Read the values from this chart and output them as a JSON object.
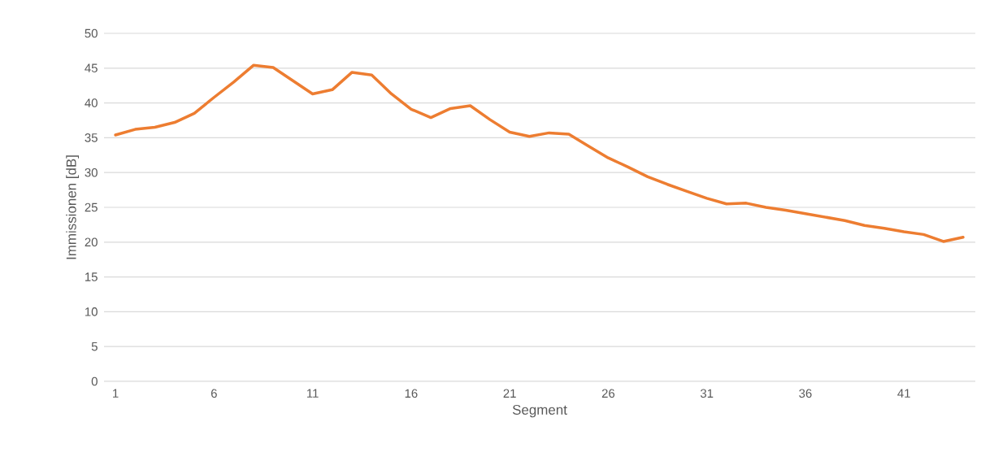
{
  "chart_data": {
    "type": "line",
    "xlabel": "Segment",
    "ylabel": "Immissionen [dB]",
    "categories": [
      "1",
      null,
      null,
      null,
      null,
      "6",
      null,
      null,
      null,
      null,
      "11",
      null,
      null,
      null,
      null,
      "16",
      null,
      null,
      null,
      null,
      "21",
      null,
      null,
      null,
      null,
      "26",
      null,
      null,
      null,
      null,
      "31",
      null,
      null,
      null,
      null,
      "36",
      null,
      null,
      null,
      null,
      "41",
      null,
      null,
      null
    ],
    "values": [
      35.4,
      36.2,
      36.5,
      37.2,
      38.5,
      40.8,
      43.0,
      45.4,
      45.1,
      43.2,
      41.3,
      41.9,
      44.4,
      44.0,
      41.3,
      39.1,
      37.9,
      39.2,
      39.6,
      37.6,
      35.8,
      35.2,
      35.7,
      35.5,
      33.8,
      32.1,
      30.8,
      29.4,
      28.3,
      27.3,
      26.3,
      25.5,
      25.6,
      25.0,
      24.6,
      24.1,
      23.6,
      23.1,
      22.4,
      22.0,
      21.5,
      21.1,
      20.1,
      20.7
    ],
    "color": "#ed7d31",
    "line_style": "solid",
    "ylim": [
      0,
      50
    ],
    "yticks": [
      0,
      5,
      10,
      15,
      20,
      25,
      30,
      35,
      40,
      45,
      50
    ],
    "grid": "y"
  }
}
